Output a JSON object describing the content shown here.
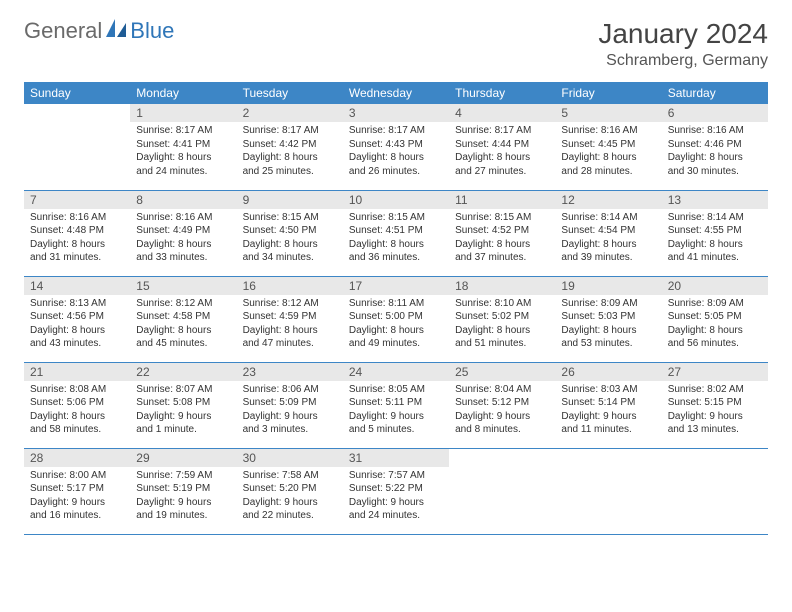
{
  "logo": {
    "part1": "General",
    "part2": "Blue"
  },
  "header": {
    "month_title": "January 2024",
    "location": "Schramberg, Germany"
  },
  "colors": {
    "header_bg": "#3d86c6",
    "header_text": "#ffffff",
    "daynum_bg": "#e8e8e8",
    "border": "#3d86c6",
    "logo_gray": "#6a6a6a",
    "logo_blue": "#2f76b8"
  },
  "weekdays": [
    "Sunday",
    "Monday",
    "Tuesday",
    "Wednesday",
    "Thursday",
    "Friday",
    "Saturday"
  ],
  "weeks": [
    [
      {
        "day": "",
        "sunrise": "",
        "sunset": "",
        "daylight": ""
      },
      {
        "day": "1",
        "sunrise": "Sunrise: 8:17 AM",
        "sunset": "Sunset: 4:41 PM",
        "daylight": "Daylight: 8 hours and 24 minutes."
      },
      {
        "day": "2",
        "sunrise": "Sunrise: 8:17 AM",
        "sunset": "Sunset: 4:42 PM",
        "daylight": "Daylight: 8 hours and 25 minutes."
      },
      {
        "day": "3",
        "sunrise": "Sunrise: 8:17 AM",
        "sunset": "Sunset: 4:43 PM",
        "daylight": "Daylight: 8 hours and 26 minutes."
      },
      {
        "day": "4",
        "sunrise": "Sunrise: 8:17 AM",
        "sunset": "Sunset: 4:44 PM",
        "daylight": "Daylight: 8 hours and 27 minutes."
      },
      {
        "day": "5",
        "sunrise": "Sunrise: 8:16 AM",
        "sunset": "Sunset: 4:45 PM",
        "daylight": "Daylight: 8 hours and 28 minutes."
      },
      {
        "day": "6",
        "sunrise": "Sunrise: 8:16 AM",
        "sunset": "Sunset: 4:46 PM",
        "daylight": "Daylight: 8 hours and 30 minutes."
      }
    ],
    [
      {
        "day": "7",
        "sunrise": "Sunrise: 8:16 AM",
        "sunset": "Sunset: 4:48 PM",
        "daylight": "Daylight: 8 hours and 31 minutes."
      },
      {
        "day": "8",
        "sunrise": "Sunrise: 8:16 AM",
        "sunset": "Sunset: 4:49 PM",
        "daylight": "Daylight: 8 hours and 33 minutes."
      },
      {
        "day": "9",
        "sunrise": "Sunrise: 8:15 AM",
        "sunset": "Sunset: 4:50 PM",
        "daylight": "Daylight: 8 hours and 34 minutes."
      },
      {
        "day": "10",
        "sunrise": "Sunrise: 8:15 AM",
        "sunset": "Sunset: 4:51 PM",
        "daylight": "Daylight: 8 hours and 36 minutes."
      },
      {
        "day": "11",
        "sunrise": "Sunrise: 8:15 AM",
        "sunset": "Sunset: 4:52 PM",
        "daylight": "Daylight: 8 hours and 37 minutes."
      },
      {
        "day": "12",
        "sunrise": "Sunrise: 8:14 AM",
        "sunset": "Sunset: 4:54 PM",
        "daylight": "Daylight: 8 hours and 39 minutes."
      },
      {
        "day": "13",
        "sunrise": "Sunrise: 8:14 AM",
        "sunset": "Sunset: 4:55 PM",
        "daylight": "Daylight: 8 hours and 41 minutes."
      }
    ],
    [
      {
        "day": "14",
        "sunrise": "Sunrise: 8:13 AM",
        "sunset": "Sunset: 4:56 PM",
        "daylight": "Daylight: 8 hours and 43 minutes."
      },
      {
        "day": "15",
        "sunrise": "Sunrise: 8:12 AM",
        "sunset": "Sunset: 4:58 PM",
        "daylight": "Daylight: 8 hours and 45 minutes."
      },
      {
        "day": "16",
        "sunrise": "Sunrise: 8:12 AM",
        "sunset": "Sunset: 4:59 PM",
        "daylight": "Daylight: 8 hours and 47 minutes."
      },
      {
        "day": "17",
        "sunrise": "Sunrise: 8:11 AM",
        "sunset": "Sunset: 5:00 PM",
        "daylight": "Daylight: 8 hours and 49 minutes."
      },
      {
        "day": "18",
        "sunrise": "Sunrise: 8:10 AM",
        "sunset": "Sunset: 5:02 PM",
        "daylight": "Daylight: 8 hours and 51 minutes."
      },
      {
        "day": "19",
        "sunrise": "Sunrise: 8:09 AM",
        "sunset": "Sunset: 5:03 PM",
        "daylight": "Daylight: 8 hours and 53 minutes."
      },
      {
        "day": "20",
        "sunrise": "Sunrise: 8:09 AM",
        "sunset": "Sunset: 5:05 PM",
        "daylight": "Daylight: 8 hours and 56 minutes."
      }
    ],
    [
      {
        "day": "21",
        "sunrise": "Sunrise: 8:08 AM",
        "sunset": "Sunset: 5:06 PM",
        "daylight": "Daylight: 8 hours and 58 minutes."
      },
      {
        "day": "22",
        "sunrise": "Sunrise: 8:07 AM",
        "sunset": "Sunset: 5:08 PM",
        "daylight": "Daylight: 9 hours and 1 minute."
      },
      {
        "day": "23",
        "sunrise": "Sunrise: 8:06 AM",
        "sunset": "Sunset: 5:09 PM",
        "daylight": "Daylight: 9 hours and 3 minutes."
      },
      {
        "day": "24",
        "sunrise": "Sunrise: 8:05 AM",
        "sunset": "Sunset: 5:11 PM",
        "daylight": "Daylight: 9 hours and 5 minutes."
      },
      {
        "day": "25",
        "sunrise": "Sunrise: 8:04 AM",
        "sunset": "Sunset: 5:12 PM",
        "daylight": "Daylight: 9 hours and 8 minutes."
      },
      {
        "day": "26",
        "sunrise": "Sunrise: 8:03 AM",
        "sunset": "Sunset: 5:14 PM",
        "daylight": "Daylight: 9 hours and 11 minutes."
      },
      {
        "day": "27",
        "sunrise": "Sunrise: 8:02 AM",
        "sunset": "Sunset: 5:15 PM",
        "daylight": "Daylight: 9 hours and 13 minutes."
      }
    ],
    [
      {
        "day": "28",
        "sunrise": "Sunrise: 8:00 AM",
        "sunset": "Sunset: 5:17 PM",
        "daylight": "Daylight: 9 hours and 16 minutes."
      },
      {
        "day": "29",
        "sunrise": "Sunrise: 7:59 AM",
        "sunset": "Sunset: 5:19 PM",
        "daylight": "Daylight: 9 hours and 19 minutes."
      },
      {
        "day": "30",
        "sunrise": "Sunrise: 7:58 AM",
        "sunset": "Sunset: 5:20 PM",
        "daylight": "Daylight: 9 hours and 22 minutes."
      },
      {
        "day": "31",
        "sunrise": "Sunrise: 7:57 AM",
        "sunset": "Sunset: 5:22 PM",
        "daylight": "Daylight: 9 hours and 24 minutes."
      },
      {
        "day": "",
        "sunrise": "",
        "sunset": "",
        "daylight": ""
      },
      {
        "day": "",
        "sunrise": "",
        "sunset": "",
        "daylight": ""
      },
      {
        "day": "",
        "sunrise": "",
        "sunset": "",
        "daylight": ""
      }
    ]
  ]
}
